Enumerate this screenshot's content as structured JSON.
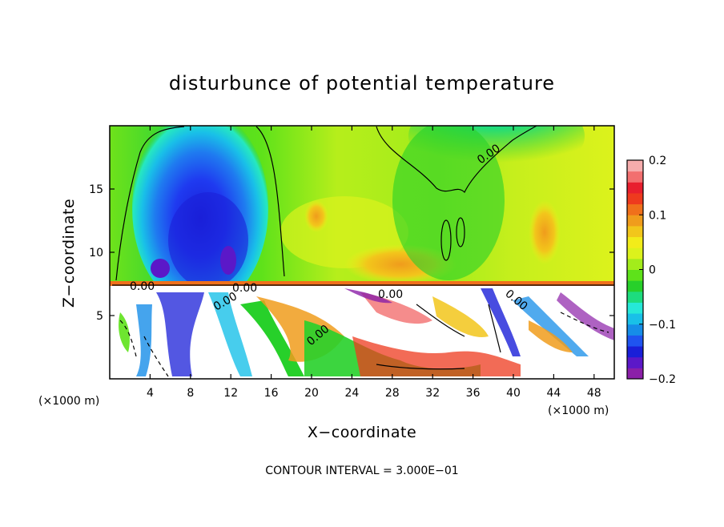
{
  "chart_data": {
    "type": "heatmap",
    "title": "disturbunce of potential temperature",
    "xlabel": "X−coordinate",
    "ylabel": "Z−coordinate",
    "x_unit": "(×1000 m)",
    "y_unit": "(×1000 m)",
    "xlim": [
      0,
      50
    ],
    "ylim": [
      0,
      20
    ],
    "x_ticks": [
      4,
      8,
      12,
      16,
      20,
      24,
      28,
      32,
      36,
      40,
      44,
      48
    ],
    "y_ticks": [
      5,
      10,
      15
    ],
    "colorbar": {
      "range": [
        -0.2,
        0.2
      ],
      "tick_values": [
        0.2,
        0.1,
        0,
        -0.1,
        -0.2
      ],
      "tick_labels": [
        "0.2",
        "0.1",
        "0",
        "−0.1",
        "−0.2"
      ],
      "colors": [
        "#8b1fa8",
        "#5b18c8",
        "#1a1fd8",
        "#1f54f0",
        "#168de8",
        "#19c0e8",
        "#26e8d8",
        "#1ddc7e",
        "#27d02a",
        "#5ee21a",
        "#a3ec1b",
        "#dcf21c",
        "#f2ec1a",
        "#f2c61b",
        "#f09c1c",
        "#f0701b",
        "#ee3a1e",
        "#e81f2e",
        "#f26f6f",
        "#f6acac"
      ]
    },
    "contour_labels": [
      "0.00",
      "0.00",
      "0.00",
      "0.00",
      "0.00",
      "0.00",
      "0.00"
    ],
    "contour_interval_text": "CONTOUR INTERVAL = 3.000E−01"
  }
}
